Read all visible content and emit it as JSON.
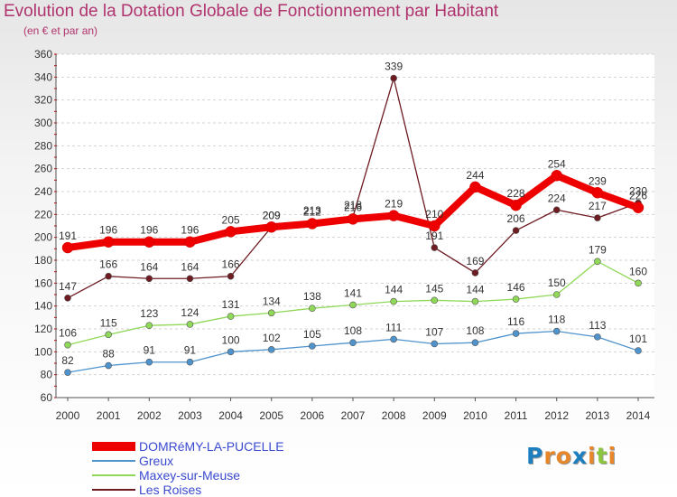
{
  "header": {
    "title": "Evolution de la Dotation Globale de Fonctionnement par Habitant",
    "subtitle": "(en € et par an)"
  },
  "chart_data": {
    "type": "line",
    "title": "Evolution de la Dotation Globale de Fonctionnement par Habitant",
    "subtitle": "(en € et par an)",
    "xlabel": "",
    "ylabel": "",
    "x": [
      "2000",
      "2001",
      "2002",
      "2003",
      "2004",
      "2005",
      "2006",
      "2007",
      "2008",
      "2009",
      "2010",
      "2011",
      "2012",
      "2013",
      "2014"
    ],
    "ylim": [
      60,
      360
    ],
    "yticks": [
      60,
      80,
      100,
      120,
      140,
      160,
      180,
      200,
      220,
      240,
      260,
      280,
      300,
      320,
      340,
      360
    ],
    "grid": "horizontal",
    "legend_position": "bottom-left",
    "series": [
      {
        "name": "Les Roises",
        "color": "#6e1b22",
        "values": [
          147,
          166,
          164,
          164,
          166,
          209,
          213,
          218,
          339,
          191,
          169,
          206,
          224,
          217,
          230
        ]
      },
      {
        "name": "Greux",
        "color": "#4f93cc",
        "values": [
          82,
          88,
          91,
          91,
          100,
          102,
          105,
          108,
          111,
          107,
          108,
          116,
          118,
          113,
          101
        ]
      },
      {
        "name": "Maxey-sur-Meuse",
        "color": "#90d858",
        "values": [
          106,
          115,
          123,
          124,
          131,
          134,
          138,
          141,
          144,
          145,
          144,
          146,
          150,
          179,
          160
        ]
      },
      {
        "name": "DOMRéMY-LA-PUCELLE",
        "color": "#ee0000",
        "values": [
          191,
          196,
          196,
          196,
          205,
          209,
          212,
          216,
          219,
          210,
          244,
          228,
          254,
          239,
          226
        ]
      }
    ]
  },
  "legend": [
    {
      "name": "DOMRéMY-LA-PUCELLE",
      "color": "#ee0000"
    },
    {
      "name": "Greux",
      "color": "#4f93cc"
    },
    {
      "name": "Maxey-sur-Meuse",
      "color": "#90d858"
    },
    {
      "name": "Les Roises",
      "color": "#6e1b22"
    }
  ],
  "logo": {
    "letters": [
      "P",
      "r",
      "o",
      "x",
      "i",
      "t",
      "i"
    ],
    "colors": [
      "#1e7fc0",
      "#e8872a",
      "#e8872a",
      "#1e7fc0",
      "#e8872a",
      "#8cc63f",
      "#e8872a"
    ]
  }
}
